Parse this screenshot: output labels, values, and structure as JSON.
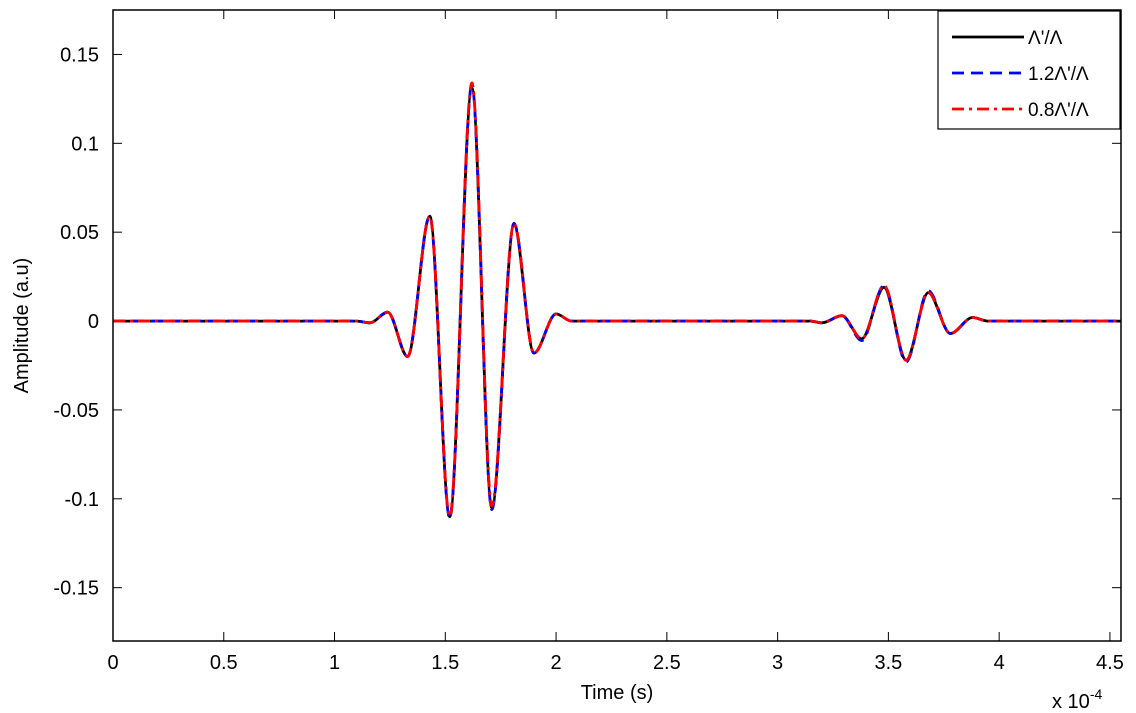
{
  "chart_data": {
    "type": "line",
    "title": "",
    "xlabel": "Time (s)",
    "ylabel": "Amplitude (a.u)",
    "x_multiplier_label": "x 10",
    "x_multiplier_exponent": "-4",
    "xlim": [
      0,
      4.55
    ],
    "ylim": [
      -0.18,
      0.175
    ],
    "x_ticks": [
      0,
      0.5,
      1,
      1.5,
      2,
      2.5,
      3,
      3.5,
      4,
      4.5
    ],
    "x_tick_labels": [
      "0",
      "0.5",
      "1",
      "1.5",
      "2",
      "2.5",
      "3",
      "3.5",
      "4",
      "4.5"
    ],
    "y_ticks": [
      -0.15,
      -0.1,
      -0.05,
      0,
      0.05,
      0.1,
      0.15
    ],
    "y_tick_labels": [
      "-0.15",
      "-0.1",
      "-0.05",
      "0",
      "0.05",
      "0.1",
      "0.15"
    ],
    "grid": false,
    "legend_position": "top-right",
    "series": [
      {
        "name": "Λ'/Λ",
        "color": "#000000",
        "style": "solid",
        "points": [
          [
            0,
            0
          ],
          [
            1.1,
            0
          ],
          [
            1.16,
            -0.001
          ],
          [
            1.24,
            0.005
          ],
          [
            1.33,
            -0.02
          ],
          [
            1.43,
            0.059
          ],
          [
            1.52,
            -0.11
          ],
          [
            1.62,
            0.131
          ],
          [
            1.71,
            -0.105
          ],
          [
            1.81,
            0.054
          ],
          [
            1.9,
            -0.018
          ],
          [
            2.0,
            0.004
          ],
          [
            2.07,
            0
          ],
          [
            3.15,
            0
          ],
          [
            3.2,
            -0.001
          ],
          [
            3.29,
            0.003
          ],
          [
            3.38,
            -0.01
          ],
          [
            3.48,
            0.019
          ],
          [
            3.58,
            -0.022
          ],
          [
            3.68,
            0.016
          ],
          [
            3.78,
            -0.007
          ],
          [
            3.88,
            0.002
          ],
          [
            3.95,
            0
          ],
          [
            4.55,
            0
          ]
        ]
      },
      {
        "name": "1.2Λ'/Λ",
        "color": "#0000ff",
        "style": "dashed",
        "points": [
          [
            0,
            0
          ],
          [
            1.1,
            0
          ],
          [
            1.16,
            -0.001
          ],
          [
            1.24,
            0.005
          ],
          [
            1.33,
            -0.02
          ],
          [
            1.43,
            0.059
          ],
          [
            1.52,
            -0.111
          ],
          [
            1.62,
            0.133
          ],
          [
            1.71,
            -0.106
          ],
          [
            1.81,
            0.055
          ],
          [
            1.9,
            -0.018
          ],
          [
            2.0,
            0.004
          ],
          [
            2.07,
            0
          ],
          [
            3.15,
            0
          ],
          [
            3.2,
            -0.001
          ],
          [
            3.29,
            0.003
          ],
          [
            3.38,
            -0.011
          ],
          [
            3.48,
            0.02
          ],
          [
            3.58,
            -0.023
          ],
          [
            3.68,
            0.017
          ],
          [
            3.78,
            -0.007
          ],
          [
            3.88,
            0.002
          ],
          [
            3.95,
            0
          ],
          [
            4.55,
            0
          ]
        ]
      },
      {
        "name": "0.8Λ'/Λ",
        "color": "#ff0000",
        "style": "dashdot",
        "points": [
          [
            0,
            0
          ],
          [
            1.1,
            0
          ],
          [
            1.16,
            -0.001
          ],
          [
            1.24,
            0.005
          ],
          [
            1.33,
            -0.02
          ],
          [
            1.43,
            0.059
          ],
          [
            1.52,
            -0.11
          ],
          [
            1.62,
            0.134
          ],
          [
            1.71,
            -0.104
          ],
          [
            1.81,
            0.055
          ],
          [
            1.9,
            -0.018
          ],
          [
            2.0,
            0.004
          ],
          [
            2.07,
            0
          ],
          [
            3.15,
            0
          ],
          [
            3.2,
            -0.001
          ],
          [
            3.29,
            0.003
          ],
          [
            3.38,
            -0.01
          ],
          [
            3.48,
            0.02
          ],
          [
            3.58,
            -0.022
          ],
          [
            3.68,
            0.016
          ],
          [
            3.78,
            -0.007
          ],
          [
            3.88,
            0.002
          ],
          [
            3.95,
            0
          ],
          [
            4.55,
            0
          ]
        ]
      }
    ]
  }
}
